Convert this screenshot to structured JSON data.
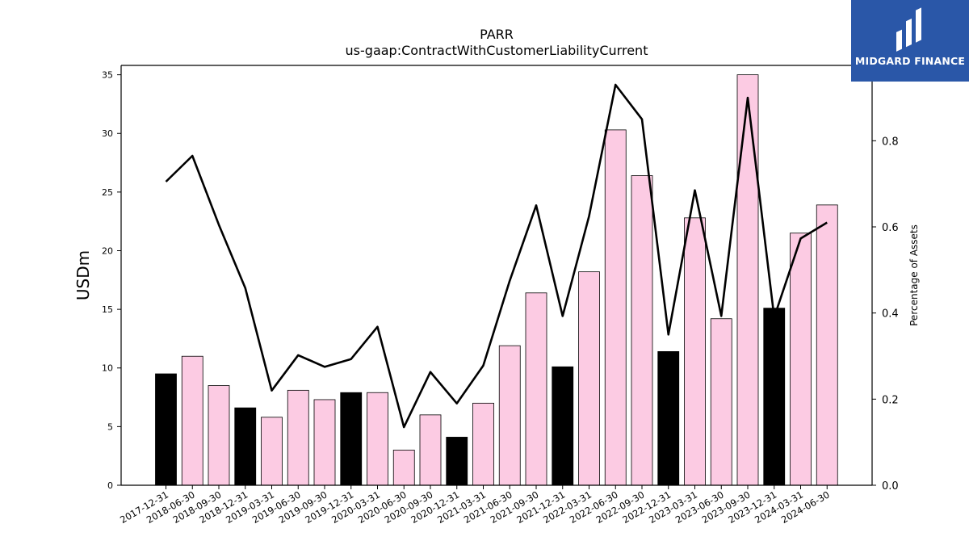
{
  "chart_data": {
    "type": "bar",
    "title": "PARR",
    "subtitle": "us-gaap:ContractWithCustomerLiabilityCurrent",
    "ylabel": "USDm",
    "y2label": "Percentage of Assets",
    "ylim": [
      0,
      35.8
    ],
    "y2lim": [
      0,
      0.975
    ],
    "yticks": [
      0,
      5,
      10,
      15,
      20,
      25,
      30,
      35
    ],
    "y2ticks": [
      0.0,
      0.2,
      0.4,
      0.6,
      0.8
    ],
    "categories": [
      "2017-12-31",
      "2018-06-30",
      "2018-09-30",
      "2018-12-31",
      "2019-03-31",
      "2019-06-30",
      "2019-09-30",
      "2019-12-31",
      "2020-03-31",
      "2020-06-30",
      "2020-09-30",
      "2020-12-31",
      "2021-03-31",
      "2021-06-30",
      "2021-09-30",
      "2021-12-31",
      "2022-03-31",
      "2022-06-30",
      "2022-09-30",
      "2022-12-31",
      "2023-03-31",
      "2023-06-30",
      "2023-09-30",
      "2023-12-31",
      "2024-03-31",
      "2024-06-30"
    ],
    "series": [
      {
        "kind": "bar",
        "values": [
          9.5,
          11.0,
          8.5,
          6.6,
          5.8,
          8.1,
          7.3,
          7.9,
          7.9,
          3.0,
          6.0,
          4.1,
          7.0,
          11.9,
          16.4,
          10.1,
          18.2,
          30.3,
          26.4,
          11.4,
          22.8,
          14.2,
          35.0,
          15.1,
          21.5,
          23.9
        ],
        "highlight": [
          true,
          false,
          false,
          true,
          false,
          false,
          false,
          true,
          false,
          false,
          false,
          true,
          false,
          false,
          false,
          true,
          false,
          false,
          false,
          true,
          false,
          false,
          false,
          true,
          false,
          false
        ]
      },
      {
        "kind": "line",
        "axis": "right",
        "values": [
          0.705,
          0.765,
          0.605,
          0.458,
          0.22,
          0.302,
          0.275,
          0.293,
          0.368,
          0.135,
          0.263,
          0.19,
          0.278,
          0.475,
          0.65,
          0.393,
          0.625,
          0.93,
          0.85,
          0.35,
          0.685,
          0.393,
          0.9,
          0.39,
          0.573,
          0.61
        ]
      }
    ],
    "colors": {
      "bar": "#fccbe3",
      "bar_highlight": "#000000",
      "line": "#000000",
      "axis": "#000000"
    },
    "grid": false
  },
  "logo": {
    "text": "MIDGARD FINANCE",
    "background": "#2a57a8"
  }
}
